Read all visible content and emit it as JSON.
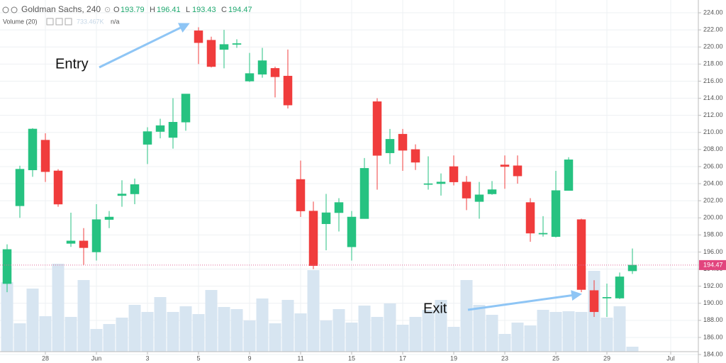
{
  "chart_data": {
    "type": "candlestick",
    "title": "Goldman Sachs, 240",
    "header": {
      "o_label": "O",
      "o": 193.79,
      "h_label": "H",
      "h": 196.41,
      "l_label": "L",
      "l": 193.43,
      "c_label": "C",
      "c": 194.47
    },
    "volume_label": "Volume (20)",
    "volume_value_label": "733.467K",
    "volume_na": "n/a",
    "up_color": "#26c281",
    "down_color": "#f03c3c",
    "volume_color": "#d7e5f1",
    "open": [
      192.3,
      201.4,
      205.6,
      209.1,
      205.5,
      197.0,
      197.3,
      196.0,
      199.8,
      202.6,
      202.8,
      208.6,
      210.1,
      209.4,
      211.2,
      221.9,
      220.8,
      219.7,
      220.3,
      216.0,
      216.8,
      217.5,
      216.6,
      204.5,
      200.8,
      199.3,
      200.6,
      196.6,
      199.9,
      213.6,
      207.6,
      209.8,
      208.0,
      203.9,
      204.0,
      206.0,
      204.2,
      201.9,
      202.8,
      206.2,
      206.1,
      201.8,
      198.1,
      197.8,
      203.2,
      199.8,
      191.5,
      190.6,
      190.6,
      193.79
    ],
    "high": [
      196.9,
      206.1,
      210.5,
      209.9,
      205.7,
      200.6,
      198.8,
      201.6,
      200.8,
      204.4,
      204.6,
      210.6,
      211.6,
      214.0,
      214.5,
      222.3,
      221.2,
      222.0,
      220.9,
      219.3,
      219.9,
      217.7,
      219.7,
      206.7,
      201.9,
      202.8,
      202.3,
      200.8,
      207.0,
      214.0,
      210.4,
      210.4,
      208.6,
      207.2,
      205.2,
      207.3,
      204.9,
      204.2,
      204.3,
      207.3,
      207.3,
      202.3,
      200.2,
      205.5,
      207.1,
      199.9,
      192.7,
      192.3,
      193.6,
      196.41
    ],
    "low": [
      191.3,
      200.0,
      204.8,
      204.2,
      201.3,
      196.6,
      194.5,
      195.0,
      198.8,
      201.3,
      201.6,
      206.3,
      209.3,
      208.1,
      210.2,
      218.0,
      217.6,
      217.5,
      219.9,
      215.9,
      216.4,
      214.1,
      212.8,
      200.1,
      194.0,
      196.2,
      198.4,
      195.0,
      199.9,
      203.3,
      206.3,
      205.5,
      205.6,
      203.3,
      202.6,
      203.8,
      200.9,
      199.9,
      202.7,
      203.4,
      204.0,
      197.2,
      197.8,
      197.7,
      203.2,
      191.3,
      188.4,
      188.4,
      190.5,
      193.43
    ],
    "close": [
      196.3,
      205.7,
      210.4,
      205.4,
      201.6,
      197.3,
      196.5,
      199.8,
      200.1,
      202.8,
      203.9,
      210.1,
      210.8,
      211.2,
      214.5,
      220.5,
      217.7,
      220.3,
      220.4,
      216.9,
      218.4,
      216.5,
      213.2,
      200.8,
      194.4,
      200.6,
      201.8,
      200.1,
      205.8,
      207.3,
      209.2,
      207.9,
      206.5,
      204.0,
      204.2,
      204.2,
      202.3,
      202.7,
      203.3,
      206.0,
      204.9,
      198.2,
      198.2,
      203.2,
      206.8,
      191.6,
      189.0,
      190.7,
      193.1,
      194.47
    ],
    "volume": [
      98,
      40,
      89,
      50,
      124,
      49,
      101,
      32,
      39,
      48,
      66,
      56,
      77,
      56,
      64,
      53,
      87,
      63,
      60,
      44,
      75,
      40,
      73,
      54,
      115,
      44,
      60,
      41,
      65,
      49,
      68,
      38,
      49,
      59,
      73,
      35,
      101,
      66,
      52,
      25,
      41,
      37,
      59,
      56,
      57,
      56,
      114,
      48,
      64,
      7
    ],
    "volume_lim": [
      0,
      160
    ],
    "last_price": 194.47,
    "ylim": [
      183,
      224.5
    ],
    "yticks": [
      {
        "value": 184,
        "label": "184.00"
      },
      {
        "value": 186,
        "label": "186.00"
      },
      {
        "value": 188,
        "label": "188.00"
      },
      {
        "value": 190,
        "label": "190.00"
      },
      {
        "value": 192,
        "label": "192.00"
      },
      {
        "value": 194,
        "label": "194.00"
      },
      {
        "value": 196,
        "label": "196.00"
      },
      {
        "value": 198,
        "label": "198.00"
      },
      {
        "value": 200,
        "label": "200.00"
      },
      {
        "value": 202,
        "label": "202.00"
      },
      {
        "value": 204,
        "label": "204.00"
      },
      {
        "value": 206,
        "label": "206.00"
      },
      {
        "value": 208,
        "label": "208.00"
      },
      {
        "value": 210,
        "label": "210.00"
      },
      {
        "value": 212,
        "label": "212.00"
      },
      {
        "value": 214,
        "label": "214.00"
      },
      {
        "value": 216,
        "label": "216.00"
      },
      {
        "value": 218,
        "label": "218.00"
      },
      {
        "value": 220,
        "label": "220.00"
      },
      {
        "value": 222,
        "label": "222.00"
      },
      {
        "value": 224,
        "label": "224.00"
      }
    ],
    "xticks": [
      {
        "value": 3,
        "label": "28"
      },
      {
        "value": 7,
        "label": "Jun"
      },
      {
        "value": 11,
        "label": "3"
      },
      {
        "value": 15,
        "label": "5"
      },
      {
        "value": 19,
        "label": "9"
      },
      {
        "value": 23,
        "label": "11"
      },
      {
        "value": 27,
        "label": "15"
      },
      {
        "value": 31,
        "label": "17"
      },
      {
        "value": 35,
        "label": "19"
      },
      {
        "value": 39,
        "label": "23"
      },
      {
        "value": 43,
        "label": "25"
      },
      {
        "value": 47,
        "label": "29"
      },
      {
        "value": 52,
        "label": "Jul"
      }
    ],
    "grid": true,
    "annotations": [
      "Entry",
      "Exit"
    ]
  }
}
